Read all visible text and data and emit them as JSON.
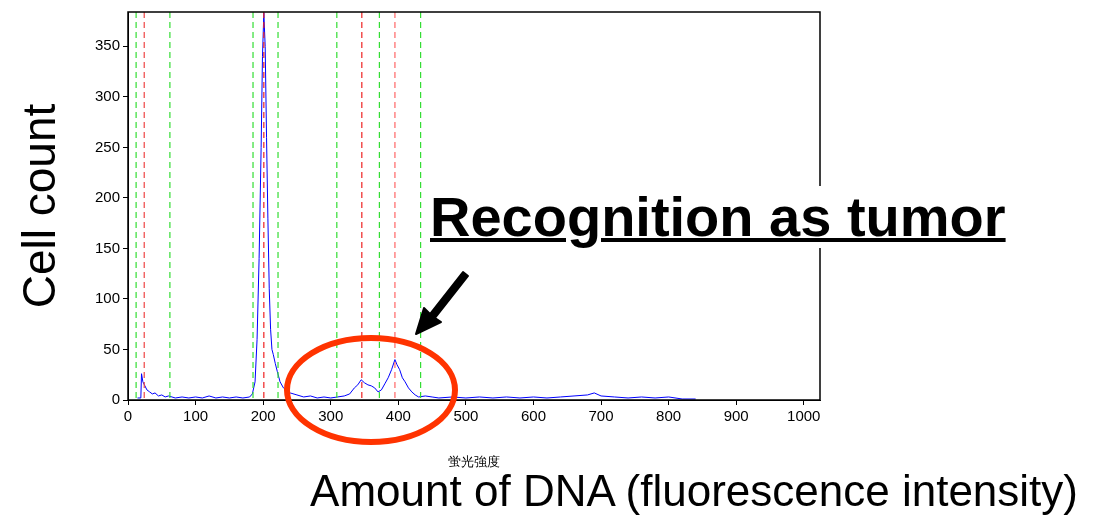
{
  "chart_data": {
    "type": "line",
    "xlabel": "蛍光強度",
    "ylabel": "Cell count",
    "annotations": [
      "Recognition as tumor",
      "Amount of DNA (fluorescence intensity)"
    ],
    "xlim": [
      0,
      1024
    ],
    "ylim": [
      0,
      384
    ],
    "xticks": [
      0,
      100,
      200,
      300,
      400,
      500,
      600,
      700,
      800,
      900,
      1000
    ],
    "yticks": [
      0,
      50,
      100,
      150,
      200,
      250,
      300,
      350
    ],
    "grid": false,
    "legend": false,
    "marker": "none",
    "line_style": "solid",
    "ref_lines": [
      {
        "axis": "x",
        "value": 12,
        "color": "#33dd33",
        "line_style": "dashed"
      },
      {
        "axis": "x",
        "value": 24,
        "color": "#ee4444",
        "line_style": "dashed"
      },
      {
        "axis": "x",
        "value": 62,
        "color": "#33dd33",
        "line_style": "dashed"
      },
      {
        "axis": "x",
        "value": 185,
        "color": "#33dd33",
        "line_style": "dashed"
      },
      {
        "axis": "x",
        "value": 201,
        "color": "#ee2222",
        "line_style": "dashed"
      },
      {
        "axis": "x",
        "value": 222,
        "color": "#33dd33",
        "line_style": "dashed"
      },
      {
        "axis": "x",
        "value": 309,
        "color": "#33dd33",
        "line_style": "dashed"
      },
      {
        "axis": "x",
        "value": 346,
        "color": "#ee2222",
        "line_style": "dashed"
      },
      {
        "axis": "x",
        "value": 372,
        "color": "#33dd33",
        "line_style": "dashed"
      },
      {
        "axis": "x",
        "value": 395,
        "color": "#ff6666",
        "line_style": "dashed"
      },
      {
        "axis": "x",
        "value": 433,
        "color": "#33dd33",
        "line_style": "dashed"
      }
    ],
    "series": [
      {
        "color": "#0000ff",
        "x": [
          14,
          19,
          20,
          22,
          25,
          28,
          32,
          36,
          40,
          45,
          50,
          55,
          60,
          70,
          80,
          90,
          100,
          110,
          120,
          130,
          140,
          150,
          160,
          170,
          180,
          184,
          188,
          191,
          194,
          197,
          199,
          201,
          203,
          205,
          207,
          209,
          211,
          213,
          215,
          218,
          221,
          225,
          230,
          235,
          240,
          250,
          260,
          270,
          280,
          290,
          300,
          310,
          320,
          328,
          335,
          340,
          345,
          350,
          355,
          360,
          365,
          370,
          375,
          380,
          385,
          390,
          395,
          398,
          402,
          406,
          410,
          415,
          420,
          425,
          430,
          440,
          450,
          460,
          480,
          500,
          520,
          540,
          560,
          580,
          600,
          620,
          640,
          660,
          680,
          690,
          700,
          720,
          740,
          760,
          780,
          800,
          820,
          840
        ],
        "values": [
          2,
          2,
          26,
          18,
          14,
          10,
          8,
          6,
          7,
          4,
          5,
          3,
          4,
          2,
          3,
          2,
          3,
          2,
          4,
          2,
          3,
          2,
          3,
          2,
          3,
          6,
          18,
          60,
          140,
          250,
          340,
          383,
          350,
          260,
          180,
          110,
          70,
          50,
          45,
          36,
          28,
          18,
          12,
          10,
          7,
          5,
          3,
          4,
          2,
          3,
          2,
          3,
          4,
          6,
          12,
          15,
          20,
          17,
          15,
          14,
          12,
          8,
          10,
          16,
          22,
          30,
          40,
          35,
          30,
          22,
          18,
          12,
          8,
          5,
          3,
          4,
          3,
          2,
          3,
          2,
          3,
          2,
          3,
          2,
          3,
          2,
          3,
          4,
          5,
          7,
          4,
          3,
          2,
          3,
          2,
          3,
          1,
          1
        ]
      }
    ]
  }
}
